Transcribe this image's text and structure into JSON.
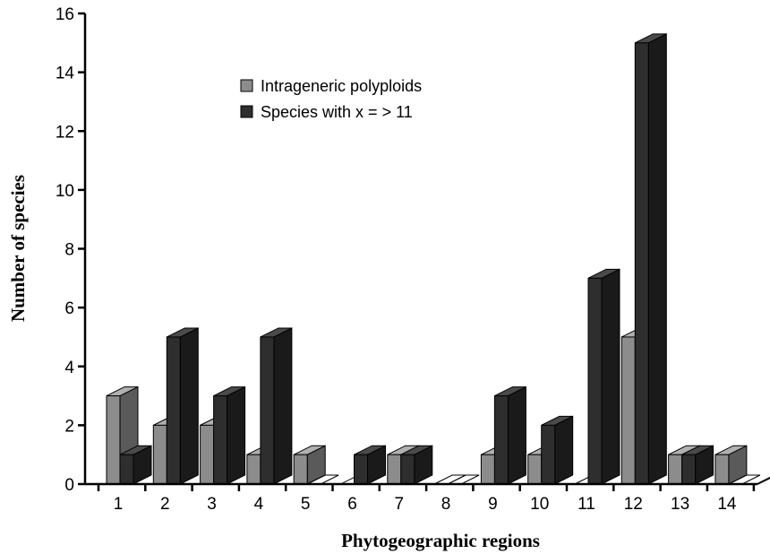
{
  "chart_data": {
    "type": "bar",
    "style": "3d-grouped",
    "categories": [
      "1",
      "2",
      "3",
      "4",
      "5",
      "6",
      "7",
      "8",
      "9",
      "10",
      "11",
      "12",
      "13",
      "14"
    ],
    "series": [
      {
        "name": "Intrageneric polyploids",
        "values": [
          3,
          2,
          2,
          1,
          1,
          0,
          1,
          0,
          1,
          1,
          0,
          5,
          1,
          1
        ],
        "color": "#8c8c8c",
        "side_color": "#5a5a5a",
        "top_color": "#b0b0b0"
      },
      {
        "name": "Species with x = > 11",
        "values": [
          1,
          5,
          3,
          5,
          0,
          1,
          1,
          0,
          3,
          2,
          7,
          15,
          1,
          0
        ],
        "color": "#2e2e2e",
        "side_color": "#1a1a1a",
        "top_color": "#4a4a4a"
      }
    ],
    "xlabel": "Phytogeographic regions",
    "ylabel": "Number of species",
    "ylim": [
      0,
      16
    ],
    "yticks": [
      0,
      2,
      4,
      6,
      8,
      10,
      12,
      14,
      16
    ],
    "grid": false,
    "legend_position": "upper-center"
  }
}
